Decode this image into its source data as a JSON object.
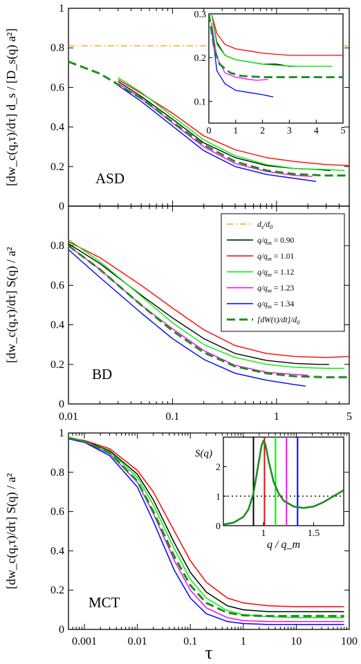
{
  "colors": {
    "dsd0": "#ffa500",
    "q090": "#000000",
    "q101": "#ff0000",
    "q112": "#00ee00",
    "q123": "#ff00ff",
    "q134": "#0000ff",
    "dWdt": "#1e8c1e"
  },
  "chart_data": [
    {
      "id": "asd",
      "type": "line",
      "panel_label": "ASD",
      "ylabel": "[dw_c(q,τ)/dτ] d_s / [D_s(q) a²]",
      "xscale": "log",
      "xlim": [
        0.01,
        5
      ],
      "ylim": [
        0,
        1
      ],
      "yticks": [
        "0",
        "0.2",
        "0.4",
        "0.6",
        "0.8",
        "1"
      ],
      "series": [
        {
          "key": "dsd0",
          "style": "dashdot",
          "x": [
            0.01,
            5
          ],
          "y": [
            0.81,
            0.81
          ]
        },
        {
          "key": "q090",
          "x": [
            0.03,
            0.05,
            0.1,
            0.2,
            0.4,
            0.8,
            1.5,
            2.5,
            3.3
          ],
          "y": [
            0.63,
            0.555,
            0.44,
            0.32,
            0.245,
            0.205,
            0.19,
            0.185,
            0.18
          ]
        },
        {
          "key": "q101",
          "x": [
            0.03,
            0.05,
            0.1,
            0.2,
            0.4,
            0.8,
            1.5,
            3,
            5
          ],
          "y": [
            0.64,
            0.57,
            0.47,
            0.355,
            0.285,
            0.245,
            0.225,
            0.21,
            0.205
          ]
        },
        {
          "key": "q112",
          "x": [
            0.03,
            0.05,
            0.1,
            0.2,
            0.4,
            0.8,
            1.5,
            3,
            4.5
          ],
          "y": [
            0.65,
            0.575,
            0.455,
            0.335,
            0.255,
            0.21,
            0.19,
            0.185,
            0.18
          ]
        },
        {
          "key": "q123",
          "x": [
            0.03,
            0.05,
            0.1,
            0.2,
            0.4,
            0.8,
            1.5,
            2.2
          ],
          "y": [
            0.62,
            0.545,
            0.42,
            0.3,
            0.215,
            0.175,
            0.155,
            0.15
          ]
        },
        {
          "key": "q134",
          "x": [
            0.03,
            0.05,
            0.1,
            0.2,
            0.4,
            0.8,
            1.5,
            2.4
          ],
          "y": [
            0.61,
            0.53,
            0.405,
            0.28,
            0.2,
            0.16,
            0.14,
            0.125
          ]
        },
        {
          "key": "dWdt",
          "style": "dashed",
          "x": [
            0.01,
            0.02,
            0.05,
            0.1,
            0.2,
            0.4,
            0.8,
            1.5,
            3,
            5
          ],
          "y": [
            0.73,
            0.67,
            0.545,
            0.425,
            0.31,
            0.225,
            0.18,
            0.162,
            0.155,
            0.155
          ]
        }
      ],
      "inset": {
        "type": "line",
        "xlim": [
          0,
          5
        ],
        "ylim": [
          0.05,
          0.3
        ],
        "xticks": [
          "0",
          "1",
          "2",
          "3",
          "4",
          "5"
        ],
        "yticks": [
          "0.1",
          "0.2",
          "0.3"
        ],
        "series": [
          {
            "key": "dsd0",
            "style": "dashdot",
            "x": [
              0,
              5
            ],
            "y": [
              0.31,
              0.31
            ]
          },
          {
            "key": "q090",
            "x": [
              0.1,
              0.3,
              0.6,
              1,
              1.5,
              2,
              2.5,
              3,
              3.3
            ],
            "y": [
              0.3,
              0.235,
              0.205,
              0.195,
              0.19,
              0.185,
              0.185,
              0.18,
              0.18
            ]
          },
          {
            "key": "q101",
            "x": [
              0.1,
              0.3,
              0.6,
              1,
              1.5,
              2,
              3,
              4,
              5
            ],
            "y": [
              0.3,
              0.255,
              0.23,
              0.22,
              0.215,
              0.21,
              0.205,
              0.205,
              0.205
            ]
          },
          {
            "key": "q112",
            "x": [
              0.1,
              0.3,
              0.6,
              1,
              1.5,
              2,
              2.6,
              3.3,
              4.6
            ],
            "y": [
              0.3,
              0.23,
              0.205,
              0.195,
              0.19,
              0.185,
              0.182,
              0.18,
              0.18
            ]
          },
          {
            "key": "q123",
            "x": [
              0.1,
              0.3,
              0.6,
              1,
              1.5,
              1.8,
              2.2
            ],
            "y": [
              0.28,
              0.2,
              0.165,
              0.155,
              0.15,
              0.148,
              0.15
            ]
          },
          {
            "key": "q134",
            "x": [
              0.1,
              0.3,
              0.6,
              1,
              1.5,
              2,
              2.4
            ],
            "y": [
              0.27,
              0.17,
              0.14,
              0.125,
              0.12,
              0.115,
              0.11
            ]
          },
          {
            "key": "dWdt",
            "style": "dashed",
            "x": [
              0,
              0.2,
              0.4,
              0.8,
              1.2,
              2,
              3,
              5
            ],
            "y": [
              0.3,
              0.22,
              0.185,
              0.165,
              0.158,
              0.155,
              0.155,
              0.155
            ]
          }
        ]
      }
    },
    {
      "id": "bd",
      "type": "line",
      "panel_label": "BD",
      "ylabel": "[dw_c(q,τ)/dτ] S(q) / a²",
      "xscale": "log",
      "xlim": [
        0.01,
        5
      ],
      "ylim": [
        0,
        1
      ],
      "xticks": [
        "0.01",
        "0.1",
        "1",
        "5"
      ],
      "yticks": [
        "0",
        "0.2",
        "0.4",
        "0.6",
        "0.8"
      ],
      "legend": {
        "placement": "upper-right",
        "entries": [
          {
            "key": "dsd0",
            "num": "d",
            "num_sub": "s",
            "den": "d",
            "den_sub": "0"
          },
          {
            "key": "q090",
            "num": "q",
            "den": "q",
            "den_sub": "m",
            "value": "= 0.90"
          },
          {
            "key": "q101",
            "num": "q",
            "den": "q",
            "den_sub": "m",
            "value": "= 1.01"
          },
          {
            "key": "q112",
            "num": "q",
            "den": "q",
            "den_sub": "m",
            "value": "= 1.12"
          },
          {
            "key": "q123",
            "num": "q",
            "den": "q",
            "den_sub": "m",
            "value": "= 1.23"
          },
          {
            "key": "q134",
            "num": "q",
            "den": "q",
            "den_sub": "m",
            "value": "= 1.34"
          },
          {
            "key": "dWdt",
            "num": "[dW(τ)/dt]",
            "den": "d",
            "den_sub": "0"
          }
        ]
      },
      "series": [
        {
          "key": "q090",
          "x": [
            0.01,
            0.02,
            0.05,
            0.1,
            0.2,
            0.4,
            0.8,
            1.5,
            2.5,
            3.2
          ],
          "y": [
            0.81,
            0.71,
            0.55,
            0.435,
            0.33,
            0.255,
            0.22,
            0.205,
            0.2,
            0.2
          ]
        },
        {
          "key": "q101",
          "x": [
            0.01,
            0.02,
            0.05,
            0.1,
            0.2,
            0.4,
            0.8,
            1.5,
            3,
            5
          ],
          "y": [
            0.82,
            0.74,
            0.6,
            0.485,
            0.375,
            0.295,
            0.255,
            0.24,
            0.235,
            0.24
          ]
        },
        {
          "key": "q112",
          "x": [
            0.01,
            0.02,
            0.05,
            0.1,
            0.2,
            0.4,
            0.8,
            1.5,
            3,
            4.5
          ],
          "y": [
            0.83,
            0.72,
            0.545,
            0.41,
            0.3,
            0.235,
            0.2,
            0.185,
            0.18,
            0.18
          ]
        },
        {
          "key": "q123",
          "x": [
            0.01,
            0.02,
            0.05,
            0.1,
            0.2,
            0.4,
            0.8,
            1.4,
            2
          ],
          "y": [
            0.8,
            0.68,
            0.5,
            0.38,
            0.27,
            0.195,
            0.16,
            0.15,
            0.145
          ]
        },
        {
          "key": "q134",
          "x": [
            0.01,
            0.02,
            0.05,
            0.1,
            0.2,
            0.4,
            0.8,
            1.4,
            1.9
          ],
          "y": [
            0.78,
            0.64,
            0.46,
            0.33,
            0.225,
            0.155,
            0.12,
            0.1,
            0.09
          ]
        },
        {
          "key": "dWdt",
          "style": "dashed",
          "x": [
            0.01,
            0.02,
            0.05,
            0.1,
            0.2,
            0.4,
            0.8,
            1.5,
            3,
            5
          ],
          "y": [
            0.8,
            0.68,
            0.5,
            0.37,
            0.26,
            0.19,
            0.155,
            0.14,
            0.135,
            0.135
          ]
        }
      ]
    },
    {
      "id": "mct",
      "type": "line",
      "panel_label": "MCT",
      "xlabel": "τ",
      "ylabel": "[dw_c(q,τ)/dτ] S(q) / a²",
      "xscale": "log",
      "xlim": [
        0.0005,
        100
      ],
      "ylim": [
        0,
        1
      ],
      "xticks": [
        "0.001",
        "0.01",
        "0.1",
        "1",
        "10",
        "100"
      ],
      "yticks": [
        "0",
        "0.2",
        "0.4",
        "0.6",
        "0.8",
        "1"
      ],
      "series": [
        {
          "key": "q090",
          "x": [
            0.0005,
            0.001,
            0.003,
            0.01,
            0.02,
            0.05,
            0.1,
            0.2,
            0.5,
            1,
            3,
            10,
            80
          ],
          "y": [
            0.975,
            0.96,
            0.91,
            0.79,
            0.66,
            0.44,
            0.29,
            0.19,
            0.12,
            0.1,
            0.09,
            0.09,
            0.09
          ]
        },
        {
          "key": "q101",
          "x": [
            0.0005,
            0.001,
            0.003,
            0.01,
            0.02,
            0.05,
            0.1,
            0.2,
            0.5,
            1,
            3,
            10,
            80
          ],
          "y": [
            0.975,
            0.962,
            0.92,
            0.81,
            0.7,
            0.5,
            0.35,
            0.24,
            0.16,
            0.135,
            0.12,
            0.115,
            0.115
          ]
        },
        {
          "key": "q112",
          "x": [
            0.0005,
            0.001,
            0.003,
            0.01,
            0.02,
            0.05,
            0.1,
            0.2,
            0.5,
            1,
            3,
            10,
            80
          ],
          "y": [
            0.975,
            0.958,
            0.905,
            0.775,
            0.635,
            0.41,
            0.255,
            0.16,
            0.095,
            0.075,
            0.065,
            0.06,
            0.06
          ]
        },
        {
          "key": "q123",
          "x": [
            0.0005,
            0.001,
            0.003,
            0.01,
            0.02,
            0.05,
            0.1,
            0.2,
            0.5,
            1,
            3,
            10,
            80
          ],
          "y": [
            0.97,
            0.955,
            0.895,
            0.75,
            0.59,
            0.35,
            0.2,
            0.11,
            0.06,
            0.045,
            0.04,
            0.04,
            0.04
          ]
        },
        {
          "key": "q134",
          "x": [
            0.0005,
            0.001,
            0.003,
            0.01,
            0.02,
            0.05,
            0.1,
            0.2,
            0.5,
            1,
            3,
            10,
            80
          ],
          "y": [
            0.97,
            0.952,
            0.885,
            0.725,
            0.55,
            0.3,
            0.16,
            0.08,
            0.04,
            0.03,
            0.025,
            0.025,
            0.025
          ]
        },
        {
          "key": "dWdt",
          "style": "dashed",
          "x": [
            0.0005,
            0.001,
            0.003,
            0.01,
            0.02,
            0.05,
            0.1,
            0.2,
            0.5,
            1,
            3,
            10,
            80
          ],
          "y": [
            0.975,
            0.957,
            0.898,
            0.755,
            0.6,
            0.37,
            0.225,
            0.135,
            0.085,
            0.072,
            0.068,
            0.068,
            0.068
          ]
        }
      ],
      "inset": {
        "type": "line",
        "title": "S(q)",
        "xlabel": "q / q_m",
        "xlim": [
          0.6,
          1.8
        ],
        "ylim": [
          0,
          3
        ],
        "xticks": [
          "1",
          "1.5"
        ],
        "yticks": [
          "0",
          "1",
          "2"
        ],
        "reference_line": {
          "y": 1,
          "style": "dotted"
        },
        "curve": {
          "key": "dWdt",
          "x": [
            0.6,
            0.7,
            0.8,
            0.85,
            0.9,
            0.95,
            0.98,
            1.0,
            1.02,
            1.05,
            1.1,
            1.15,
            1.2,
            1.3,
            1.4,
            1.5,
            1.6,
            1.7,
            1.8
          ],
          "y": [
            0.04,
            0.1,
            0.3,
            0.55,
            1.1,
            2.1,
            2.7,
            2.88,
            2.75,
            2.2,
            1.5,
            1.1,
            0.85,
            0.65,
            0.6,
            0.65,
            0.8,
            1.0,
            1.2
          ]
        },
        "markers": [
          {
            "key": "q090",
            "q": 0.9
          },
          {
            "key": "q101",
            "q": 1.01
          },
          {
            "key": "q112",
            "q": 1.12
          },
          {
            "key": "q123",
            "q": 1.23
          },
          {
            "key": "q134",
            "q": 1.34
          }
        ]
      }
    }
  ]
}
